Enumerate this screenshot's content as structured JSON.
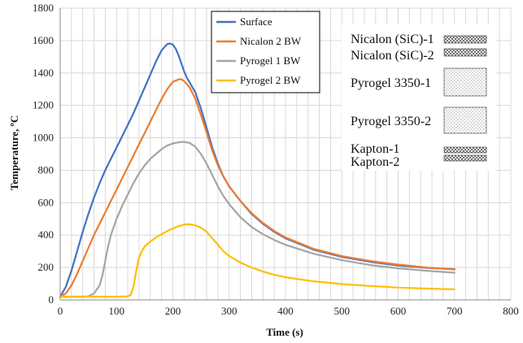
{
  "chart_data": {
    "type": "line",
    "xlabel": "Time (s)",
    "ylabel": "Temperature, ºC",
    "xlim": [
      0,
      800
    ],
    "ylim": [
      0,
      1800
    ],
    "xticks": [
      0,
      100,
      200,
      300,
      400,
      500,
      600,
      700,
      800
    ],
    "yticks": [
      0,
      200,
      400,
      600,
      800,
      1000,
      1200,
      1400,
      1600,
      1800
    ],
    "grid": true,
    "legend_position": "top-center",
    "series": [
      {
        "name": "Surface",
        "color": "#4472C4",
        "points": [
          [
            0,
            20
          ],
          [
            10,
            80
          ],
          [
            20,
            180
          ],
          [
            30,
            300
          ],
          [
            40,
            420
          ],
          [
            50,
            530
          ],
          [
            60,
            630
          ],
          [
            70,
            720
          ],
          [
            80,
            800
          ],
          [
            90,
            870
          ],
          [
            100,
            940
          ],
          [
            110,
            1010
          ],
          [
            120,
            1080
          ],
          [
            130,
            1150
          ],
          [
            140,
            1230
          ],
          [
            150,
            1310
          ],
          [
            160,
            1390
          ],
          [
            170,
            1470
          ],
          [
            180,
            1540
          ],
          [
            190,
            1578
          ],
          [
            195,
            1582
          ],
          [
            200,
            1575
          ],
          [
            205,
            1550
          ],
          [
            210,
            1510
          ],
          [
            215,
            1460
          ],
          [
            220,
            1410
          ],
          [
            225,
            1370
          ],
          [
            230,
            1340
          ],
          [
            240,
            1280
          ],
          [
            250,
            1180
          ],
          [
            260,
            1060
          ],
          [
            270,
            940
          ],
          [
            280,
            840
          ],
          [
            290,
            760
          ],
          [
            300,
            700
          ],
          [
            320,
            610
          ],
          [
            340,
            530
          ],
          [
            360,
            470
          ],
          [
            380,
            420
          ],
          [
            400,
            380
          ],
          [
            450,
            310
          ],
          [
            500,
            265
          ],
          [
            550,
            235
          ],
          [
            600,
            212
          ],
          [
            650,
            198
          ],
          [
            700,
            190
          ]
        ]
      },
      {
        "name": "Nicalon 2 BW",
        "color": "#ED7D31",
        "points": [
          [
            0,
            20
          ],
          [
            10,
            40
          ],
          [
            20,
            90
          ],
          [
            30,
            160
          ],
          [
            40,
            240
          ],
          [
            50,
            320
          ],
          [
            60,
            400
          ],
          [
            70,
            470
          ],
          [
            80,
            540
          ],
          [
            90,
            610
          ],
          [
            100,
            680
          ],
          [
            110,
            750
          ],
          [
            120,
            820
          ],
          [
            130,
            890
          ],
          [
            140,
            960
          ],
          [
            150,
            1030
          ],
          [
            160,
            1100
          ],
          [
            170,
            1170
          ],
          [
            180,
            1240
          ],
          [
            190,
            1300
          ],
          [
            200,
            1345
          ],
          [
            210,
            1360
          ],
          [
            215,
            1362
          ],
          [
            220,
            1350
          ],
          [
            230,
            1310
          ],
          [
            240,
            1240
          ],
          [
            250,
            1140
          ],
          [
            260,
            1030
          ],
          [
            270,
            920
          ],
          [
            280,
            830
          ],
          [
            290,
            760
          ],
          [
            300,
            700
          ],
          [
            320,
            610
          ],
          [
            340,
            535
          ],
          [
            360,
            475
          ],
          [
            380,
            425
          ],
          [
            400,
            385
          ],
          [
            450,
            315
          ],
          [
            500,
            270
          ],
          [
            550,
            240
          ],
          [
            600,
            218
          ],
          [
            650,
            200
          ],
          [
            700,
            188
          ]
        ]
      },
      {
        "name": "Pyrogel 1 BW",
        "color": "#A5A5A5",
        "points": [
          [
            0,
            20
          ],
          [
            20,
            20
          ],
          [
            40,
            20
          ],
          [
            50,
            22
          ],
          [
            60,
            40
          ],
          [
            70,
            90
          ],
          [
            75,
            150
          ],
          [
            80,
            240
          ],
          [
            85,
            330
          ],
          [
            90,
            400
          ],
          [
            100,
            500
          ],
          [
            110,
            580
          ],
          [
            120,
            650
          ],
          [
            130,
            720
          ],
          [
            140,
            780
          ],
          [
            150,
            830
          ],
          [
            160,
            870
          ],
          [
            170,
            900
          ],
          [
            180,
            930
          ],
          [
            190,
            952
          ],
          [
            200,
            965
          ],
          [
            210,
            972
          ],
          [
            220,
            975
          ],
          [
            230,
            968
          ],
          [
            240,
            945
          ],
          [
            250,
            900
          ],
          [
            260,
            840
          ],
          [
            270,
            770
          ],
          [
            280,
            700
          ],
          [
            290,
            640
          ],
          [
            300,
            590
          ],
          [
            320,
            510
          ],
          [
            340,
            450
          ],
          [
            360,
            405
          ],
          [
            380,
            370
          ],
          [
            400,
            340
          ],
          [
            450,
            285
          ],
          [
            500,
            245
          ],
          [
            550,
            215
          ],
          [
            600,
            195
          ],
          [
            650,
            180
          ],
          [
            700,
            168
          ]
        ]
      },
      {
        "name": "Pyrogel 2 BW",
        "color": "#FFC000",
        "points": [
          [
            0,
            20
          ],
          [
            50,
            20
          ],
          [
            100,
            20
          ],
          [
            120,
            22
          ],
          [
            125,
            30
          ],
          [
            130,
            80
          ],
          [
            135,
            180
          ],
          [
            140,
            260
          ],
          [
            145,
            300
          ],
          [
            150,
            330
          ],
          [
            160,
            360
          ],
          [
            170,
            385
          ],
          [
            180,
            405
          ],
          [
            190,
            425
          ],
          [
            200,
            440
          ],
          [
            210,
            455
          ],
          [
            220,
            465
          ],
          [
            230,
            467
          ],
          [
            240,
            460
          ],
          [
            250,
            445
          ],
          [
            260,
            420
          ],
          [
            270,
            380
          ],
          [
            280,
            340
          ],
          [
            290,
            300
          ],
          [
            300,
            270
          ],
          [
            320,
            230
          ],
          [
            340,
            200
          ],
          [
            360,
            175
          ],
          [
            380,
            155
          ],
          [
            400,
            140
          ],
          [
            450,
            115
          ],
          [
            500,
            98
          ],
          [
            550,
            86
          ],
          [
            600,
            76
          ],
          [
            650,
            70
          ],
          [
            700,
            65
          ]
        ]
      }
    ]
  },
  "layers": [
    {
      "label": "Nicalon  (SiC)-1",
      "pattern": "crosshatch"
    },
    {
      "label": "Nicalon  (SiC)-2",
      "pattern": "crosshatch"
    },
    {
      "label": "Pyrogel  3350-1",
      "pattern": "dots"
    },
    {
      "label": "Pyrogel  3350-2",
      "pattern": "dots"
    },
    {
      "label": "Kapton-1",
      "pattern": "crosshatch"
    },
    {
      "label": "Kapton-2",
      "pattern": "crosshatch"
    }
  ]
}
